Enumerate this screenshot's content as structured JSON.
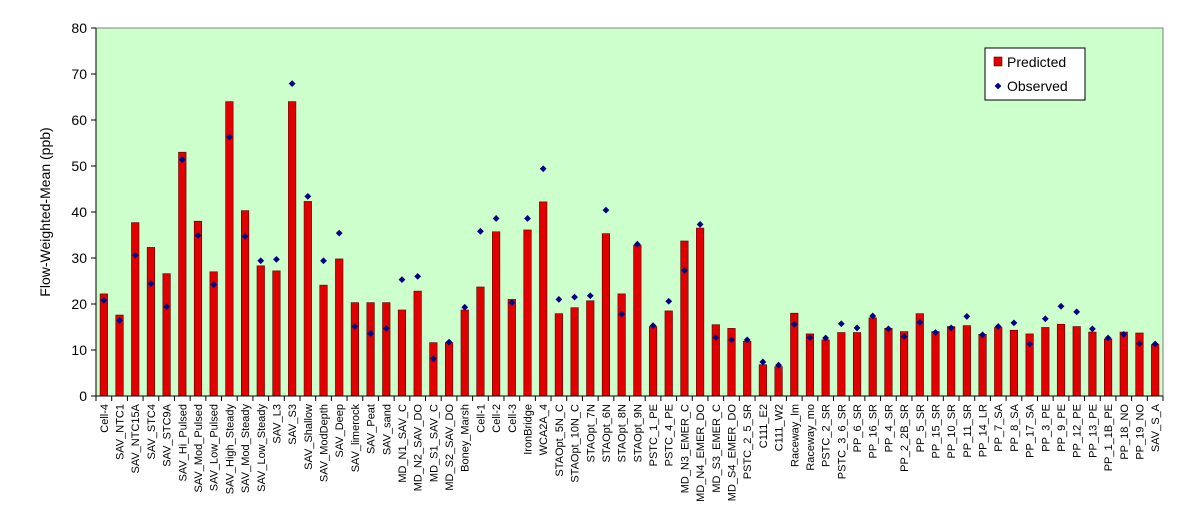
{
  "chart_data": {
    "type": "bar",
    "ylabel": "Flow-Weighted-Mean (ppb)",
    "xlabel": "",
    "ylim": [
      0,
      80
    ],
    "yticks": [
      0,
      10,
      20,
      30,
      40,
      50,
      60,
      70,
      80
    ],
    "grid": false,
    "legend_position": "top-right",
    "colors": {
      "plot_background": "#ccffcc",
      "bar_fill": "#e00000",
      "bar_stroke": "#5a0000",
      "marker": "#000080",
      "axis": "#000000"
    },
    "categories": [
      "Cell-4",
      "SAV_NTC1",
      "SAV_NTC15A",
      "SAV_STC4",
      "SAV_STC9A",
      "SAV_Hi_Pulsed",
      "SAV_Mod_Pulsed",
      "SAV_Low_Pulsed",
      "SAV_High_Steady",
      "SAV_Mod_Steady",
      "SAV_Low_Steady",
      "SAV_L3",
      "SAV_S3",
      "SAV_Shallow",
      "SAV_ModDepth",
      "SAV_Deep",
      "SAV_limerock",
      "SAV_Peat",
      "SAV_sand",
      "MD_N1_SAV_C",
      "MD_N2_SAV_DO",
      "MD_S1_SAV_C",
      "MD_S2_SAV_DO",
      "Boney_Marsh",
      "Cell-1",
      "Cell-2",
      "Cell-3",
      "IronBridge",
      "WCA2A_4",
      "STAOpt_5N_C",
      "STAOpt_10N_C",
      "STAOpt_7N",
      "STAOpt_6N",
      "STAOpt_8N",
      "STAOpt_9N",
      "PSTC_1_PE",
      "PSTC_4_PE",
      "MD_N3_EMER_C",
      "MD_N4_EMER_DO",
      "MD_S3_EMER_C",
      "MD_S4_EMER_DO",
      "PSTC_2_5_SR",
      "C111_E2",
      "C111_W2",
      "Raceway_lm",
      "Raceway_mo",
      "PSTC_2_SR",
      "PSTC_3_6_SR",
      "PP_6_SR",
      "PP_16_SR",
      "PP_4_SR",
      "PP_2_2B_SR",
      "PP_5_SR",
      "PP_15_SR",
      "PP_10_SR",
      "PP_11_SR",
      "PP_14_LR",
      "PP_7_SA",
      "PP_8_SA",
      "PP_17_SA",
      "PP_3_PE",
      "PP_9_PE",
      "PP_12_PE",
      "PP_13_PE",
      "PP_1_1B_PE",
      "PP_18_NO",
      "PP_19_NO",
      "SAV_S_A"
    ],
    "series": [
      {
        "name": "Predicted",
        "kind": "bar",
        "values": [
          22.2,
          17.6,
          37.7,
          32.3,
          26.6,
          53.0,
          38.0,
          27.0,
          64.0,
          40.3,
          28.3,
          27.2,
          64.0,
          42.3,
          24.1,
          29.8,
          20.3,
          20.3,
          20.3,
          18.7,
          22.8,
          11.6,
          11.6,
          18.7,
          23.7,
          35.7,
          21.0,
          36.1,
          42.2,
          17.9,
          19.2,
          20.7,
          35.3,
          22.2,
          32.8,
          15.1,
          18.5,
          33.7,
          36.5,
          15.5,
          14.7,
          11.9,
          6.8,
          6.4,
          18.0,
          13.5,
          12.2,
          13.8,
          13.8,
          17.0,
          14.7,
          14.0,
          17.9,
          14.0,
          15.1,
          15.3,
          13.4,
          14.9,
          14.3,
          13.5,
          14.9,
          15.6,
          15.1,
          13.9,
          12.4,
          13.9,
          13.7,
          11.2
        ]
      },
      {
        "name": "Observed",
        "kind": "marker",
        "values": [
          20.8,
          16.4,
          30.6,
          24.4,
          19.4,
          51.4,
          34.9,
          24.2,
          56.3,
          34.7,
          29.4,
          29.7,
          67.9,
          43.4,
          29.4,
          35.4,
          15.1,
          13.6,
          14.7,
          25.3,
          26.0,
          8.1,
          11.7,
          19.3,
          35.8,
          38.6,
          20.3,
          38.6,
          49.4,
          21.0,
          21.5,
          21.8,
          40.4,
          17.8,
          33.0,
          15.3,
          20.6,
          27.3,
          37.3,
          12.7,
          12.2,
          12.2,
          7.4,
          6.7,
          15.6,
          12.7,
          12.6,
          15.7,
          14.8,
          17.4,
          14.6,
          12.9,
          16.0,
          13.8,
          14.8,
          17.3,
          13.3,
          15.1,
          15.9,
          11.3,
          16.8,
          19.5,
          18.3,
          14.6,
          12.6,
          13.4,
          11.4,
          11.3
        ]
      }
    ]
  }
}
